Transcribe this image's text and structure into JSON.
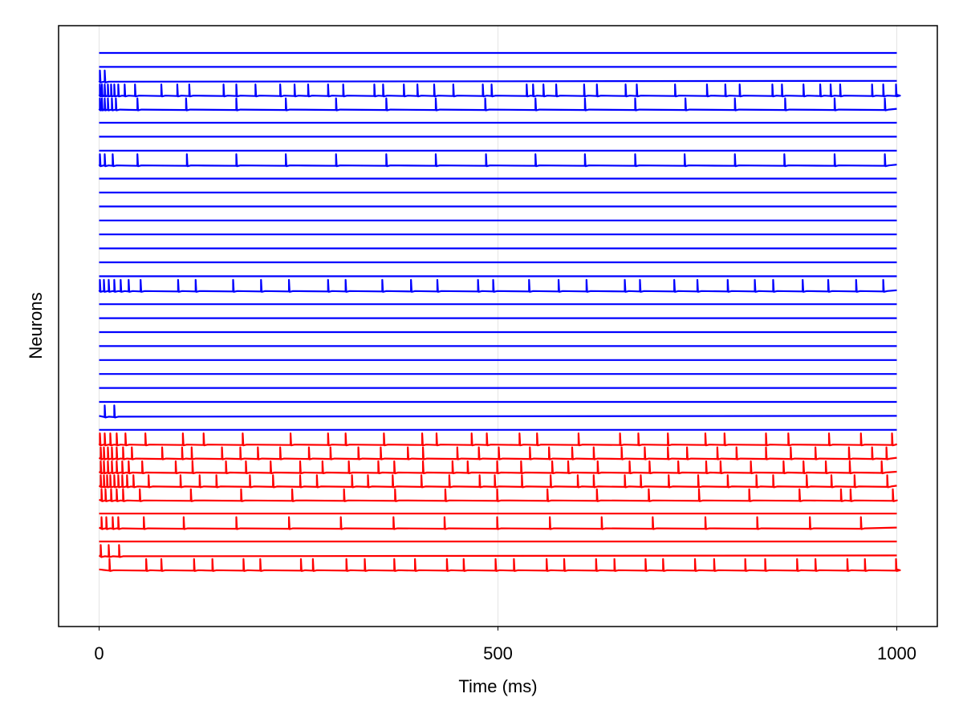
{
  "chart_data": {
    "type": "line",
    "title": "",
    "xlabel": "Time (ms)",
    "ylabel": "Neurons",
    "xlim": [
      -10,
      1010
    ],
    "x_ticks": [
      0,
      500,
      1000
    ],
    "x_tick_labels": [
      "0",
      "500",
      "1000"
    ],
    "y_ticks_shown": false,
    "grid": "vertical at x ticks",
    "legend": "none",
    "colors": {
      "excitatory": "#0000ff",
      "inhibitory": "#ff0000"
    },
    "series": [
      {
        "values": []
      },
      {
        "values": []
      },
      {
        "values": [
          1,
          7
        ]
      },
      {
        "values": [
          1,
          3.5,
          7,
          11,
          15,
          19,
          24,
          32,
          45,
          78,
          98,
          113,
          156,
          172,
          196,
          227,
          245,
          262,
          287,
          306,
          345,
          356,
          382,
          399,
          420,
          444,
          481,
          492,
          536,
          544,
          557,
          573,
          608,
          624,
          660,
          674,
          722,
          762,
          785,
          803,
          844,
          856,
          883,
          904,
          917,
          929,
          969,
          983,
          999
        ]
      },
      {
        "values": [
          1,
          3.5,
          7,
          11,
          16,
          21,
          48,
          109,
          172,
          234,
          297,
          360,
          422,
          484,
          547,
          609,
          672,
          735,
          797,
          860,
          922,
          985
        ]
      },
      {
        "values": []
      },
      {
        "values": []
      },
      {
        "values": []
      },
      {
        "values": [
          1,
          7,
          17,
          48,
          110,
          172,
          234,
          297,
          360,
          422,
          485,
          547,
          609,
          672,
          734,
          797,
          859,
          922,
          985
        ]
      },
      {
        "values": []
      },
      {
        "values": []
      },
      {
        "values": []
      },
      {
        "values": []
      },
      {
        "values": []
      },
      {
        "values": []
      },
      {
        "values": []
      },
      {
        "values": []
      },
      {
        "values": [
          1,
          6,
          12,
          19,
          27,
          37,
          52,
          99,
          121,
          168,
          203,
          238,
          287,
          309,
          355,
          391,
          424,
          475,
          494,
          539,
          576,
          611,
          659,
          678,
          721,
          750,
          788,
          822,
          845,
          882,
          914,
          949,
          983
        ]
      },
      {
        "values": []
      },
      {
        "values": []
      },
      {
        "values": []
      },
      {
        "values": []
      },
      {
        "values": []
      },
      {
        "values": []
      },
      {
        "values": []
      },
      {
        "values": []
      },
      {
        "values": [
          7,
          19
        ]
      },
      {
        "values": []
      },
      {
        "values": [
          1,
          7,
          14,
          22,
          33,
          58,
          105,
          131,
          180,
          240,
          287,
          309,
          357,
          405,
          423,
          467,
          486,
          527,
          549,
          601,
          653,
          676,
          713,
          760,
          784,
          836,
          864,
          915,
          955,
          994
        ]
      },
      {
        "values": [
          2,
          6,
          11,
          16,
          22,
          30,
          41,
          79,
          104,
          116,
          154,
          177,
          199,
          227,
          263,
          290,
          325,
          353,
          387,
          406,
          449,
          476,
          501,
          540,
          564,
          593,
          620,
          655,
          684,
          713,
          737,
          775,
          799,
          836,
          867,
          898,
          940,
          969,
          987
        ]
      },
      {
        "values": [
          2,
          6,
          11,
          16,
          22,
          29,
          37,
          54,
          96,
          117,
          159,
          184,
          215,
          252,
          280,
          313,
          350,
          370,
          406,
          443,
          462,
          499,
          529,
          568,
          588,
          625,
          665,
          690,
          726,
          761,
          779,
          817,
          858,
          883,
          911,
          941,
          981
        ]
      },
      {
        "values": [
          2,
          6,
          10,
          14,
          19,
          24,
          29,
          35,
          43,
          62,
          102,
          126,
          147,
          189,
          218,
          252,
          273,
          317,
          337,
          368,
          404,
          439,
          477,
          496,
          530,
          566,
          600,
          620,
          659,
          679,
          714,
          751,
          788,
          824,
          845,
          887,
          918,
          947,
          988
        ]
      },
      {
        "values": [
          3,
          8,
          15,
          22,
          30,
          51,
          115,
          178,
          242,
          307,
          371,
          434,
          499,
          562,
          624,
          689,
          752,
          815,
          878,
          930,
          942,
          995
        ]
      },
      {
        "values": []
      },
      {
        "values": [
          3,
          9,
          17,
          24,
          56,
          106,
          172,
          238,
          303,
          369,
          433,
          499,
          565,
          630,
          694,
          760,
          825,
          891,
          955
        ]
      },
      {
        "values": []
      },
      {
        "values": [
          2,
          12,
          25
        ]
      },
      {
        "values": [
          13,
          59,
          78,
          119,
          142,
          181,
          202,
          253,
          268,
          310,
          333,
          370,
          396,
          436,
          457,
          497,
          520,
          561,
          583,
          623,
          646,
          685,
          707,
          747,
          771,
          810,
          835,
          875,
          898,
          938,
          960,
          999
        ]
      }
    ]
  }
}
